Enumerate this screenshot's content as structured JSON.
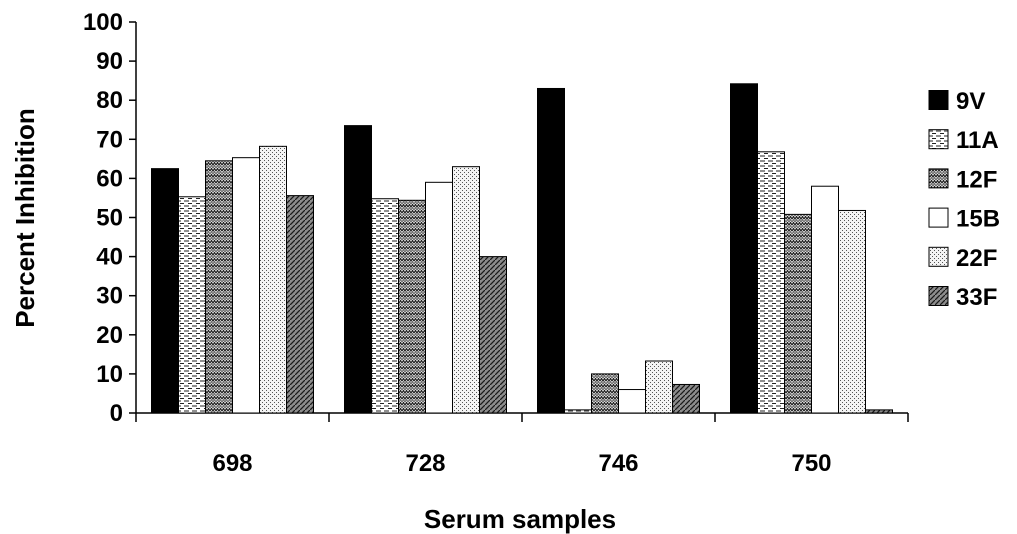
{
  "chart_data": {
    "type": "bar",
    "title": "",
    "xlabel": "Serum samples",
    "ylabel": "Percent Inhibition",
    "ylim": [
      0,
      100
    ],
    "y_ticks": [
      0,
      10,
      20,
      30,
      40,
      50,
      60,
      70,
      80,
      90,
      100
    ],
    "grid": false,
    "legend_position": "right",
    "categories": [
      "698",
      "728",
      "746",
      "750"
    ],
    "series": [
      {
        "name": "9V",
        "pattern": "solid-black",
        "values": [
          62.5,
          73.5,
          83,
          84.2
        ]
      },
      {
        "name": "11A",
        "pattern": "horizontal-dashes",
        "values": [
          55.3,
          54.8,
          0.8,
          66.8
        ]
      },
      {
        "name": "12F",
        "pattern": "zigzag-dark",
        "values": [
          64.5,
          54.4,
          10,
          50.8
        ]
      },
      {
        "name": "15B",
        "pattern": "white",
        "values": [
          65.3,
          59,
          6,
          58
        ]
      },
      {
        "name": "22F",
        "pattern": "fine-dots",
        "values": [
          68.2,
          63,
          13.3,
          51.8
        ]
      },
      {
        "name": "33F",
        "pattern": "diagonal-dark",
        "values": [
          55.6,
          40,
          7.3,
          0.8
        ]
      }
    ]
  }
}
